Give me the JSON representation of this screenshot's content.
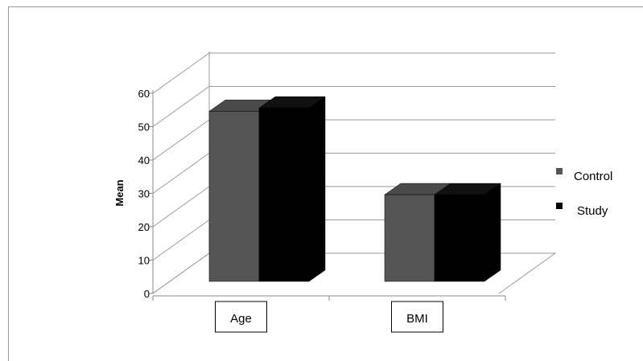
{
  "chart_data": {
    "type": "bar",
    "title": "",
    "xlabel": "",
    "ylabel": "Mean",
    "ylim": [
      0,
      60
    ],
    "yticks": [
      0,
      10,
      20,
      30,
      40,
      50,
      60
    ],
    "categories": [
      "Age",
      "BMI"
    ],
    "series": [
      {
        "name": "Control",
        "values": [
          51,
          26
        ],
        "color": "#555555"
      },
      {
        "name": "Study",
        "values": [
          52,
          26
        ],
        "color": "#000000"
      }
    ],
    "legend_position": "right",
    "grid": true,
    "style": "3d"
  }
}
